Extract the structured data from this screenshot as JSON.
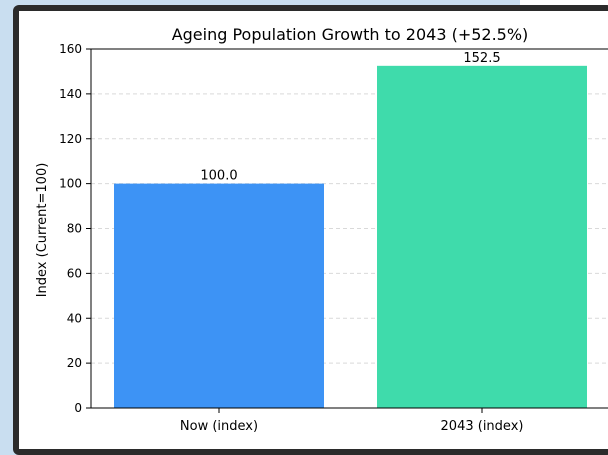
{
  "chart_data": {
    "type": "bar",
    "title": "Ageing Population Growth to 2043 (+52.5%)",
    "xlabel": "",
    "ylabel": "Index (Current=100)",
    "categories": [
      "Now (index)",
      "2043 (index)"
    ],
    "values": [
      100.0,
      152.5
    ],
    "value_labels": [
      "100.0",
      "152.5"
    ],
    "colors": [
      "#3d93f5",
      "#3fdbab"
    ],
    "ylim": [
      0,
      160
    ],
    "yticks": [
      0,
      20,
      40,
      60,
      80,
      100,
      120,
      140,
      160
    ],
    "grid": true
  }
}
